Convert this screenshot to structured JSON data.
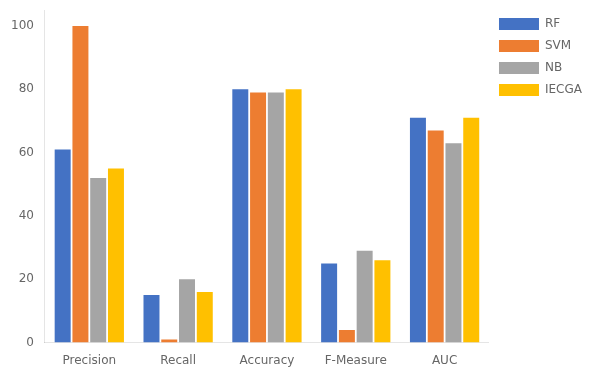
{
  "chart_data": {
    "type": "bar",
    "categories": [
      "Precision",
      "Recall",
      "Accuracy",
      "F-Measure",
      "AUC"
    ],
    "series": [
      {
        "name": "RF",
        "color": "#4472C4",
        "values": [
          61,
          15,
          80,
          25,
          71
        ]
      },
      {
        "name": "SVM",
        "color": "#ED7D31",
        "values": [
          100,
          1,
          79,
          4,
          67
        ]
      },
      {
        "name": "NB",
        "color": "#A5A5A5",
        "values": [
          52,
          20,
          79,
          29,
          63
        ]
      },
      {
        "name": "IECGA",
        "color": "#FFC000",
        "values": [
          55,
          16,
          80,
          26,
          71
        ]
      }
    ],
    "ylim": [
      0,
      105
    ],
    "yticks": [
      0,
      20,
      40,
      60,
      80,
      100
    ],
    "grid": false,
    "legend": "upper right"
  }
}
